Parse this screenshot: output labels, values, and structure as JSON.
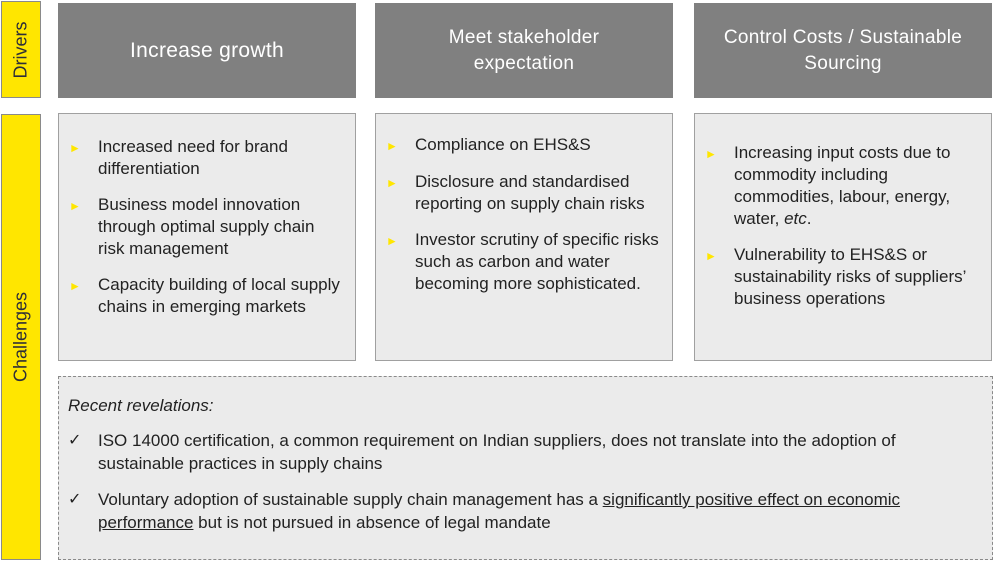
{
  "labels": {
    "drivers": "Drivers",
    "challenges": "Challenges"
  },
  "drivers": [
    "Increase growth",
    "Meet stakeholder\nexpectation",
    "Control Costs / Sustainable\nSourcing"
  ],
  "challenges": [
    {
      "items": [
        "Increased need for brand differentiation",
        "Business model innovation through optimal supply chain risk management",
        "Capacity building of local supply chains in emerging markets"
      ]
    },
    {
      "items": [
        "Compliance on EHS&S",
        "Disclosure and standardised reporting on supply chain risks",
        "Investor scrutiny of specific risks such as carbon and water becoming more sophisticated."
      ]
    },
    {
      "items": [
        "Increasing input costs due to commodity including commodities, labour, energy, water, ",
        "Vulnerability to EHS&S or sustainability risks of suppliers’ business operations"
      ],
      "etc": "etc",
      "etc_suffix": "."
    }
  ],
  "revelations": {
    "heading": "Recent revelations:",
    "item1": "ISO 14000 certification, a common requirement on Indian suppliers, does not translate into the adoption of sustainable practices in supply chains",
    "item2_before": "Voluntary adoption of sustainable supply chain management has a ",
    "item2_underlined": "significantly positive effect on economic performance",
    "item2_after": " but is not pursued in absence of legal mandate"
  },
  "icons": {
    "bullet": "arrow-right-icon",
    "check": "checkmark-icon"
  },
  "colors": {
    "accent": "#ffe600",
    "driver_bg": "#808080",
    "box_bg": "#ebebeb"
  }
}
